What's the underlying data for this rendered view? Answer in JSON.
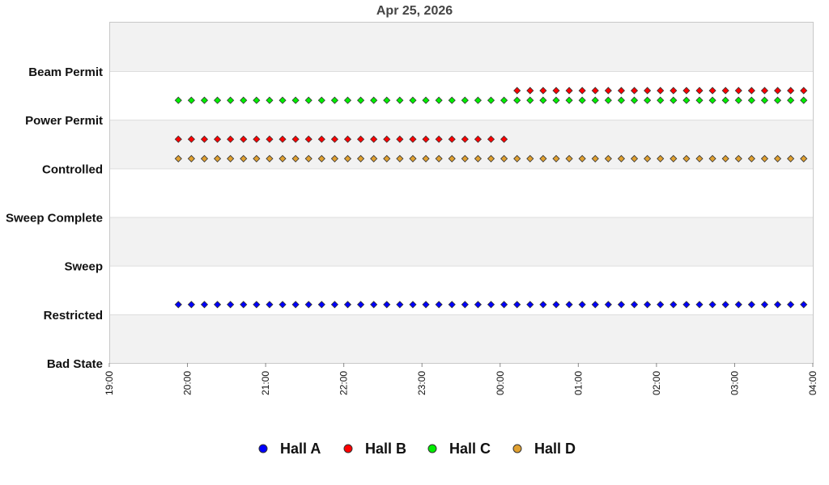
{
  "chart_data": {
    "type": "scatter",
    "title": "Apr 25, 2026",
    "y_categories": [
      "Bad State",
      "Restricted",
      "Sweep",
      "Sweep Complete",
      "Controlled",
      "Power Permit",
      "Beam Permit"
    ],
    "x_ticks": [
      "19:00",
      "20:00",
      "21:00",
      "22:00",
      "23:00",
      "00:00",
      "01:00",
      "02:00",
      "03:00",
      "04:00"
    ],
    "xlim": [
      "19:00",
      "04:00"
    ],
    "grid": "horizontal",
    "banded_background": true,
    "legend_position": "bottom",
    "sample_interval_minutes": 10,
    "series": [
      {
        "name": "Hall A",
        "color": "#0000ff",
        "segments": [
          {
            "start": "19:53",
            "end": "03:53",
            "value": 1.2
          }
        ]
      },
      {
        "name": "Hall B",
        "color": "#ff0000",
        "segments": [
          {
            "start": "19:53",
            "end": "00:03",
            "value": 4.6
          },
          {
            "start": "00:13",
            "end": "03:53",
            "value": 5.6
          }
        ]
      },
      {
        "name": "Hall C",
        "color": "#00ee00",
        "segments": [
          {
            "start": "19:53",
            "end": "03:53",
            "value": 5.4
          }
        ]
      },
      {
        "name": "Hall D",
        "color": "#e0a030",
        "segments": [
          {
            "start": "19:53",
            "end": "03:53",
            "value": 4.2
          }
        ]
      }
    ]
  }
}
